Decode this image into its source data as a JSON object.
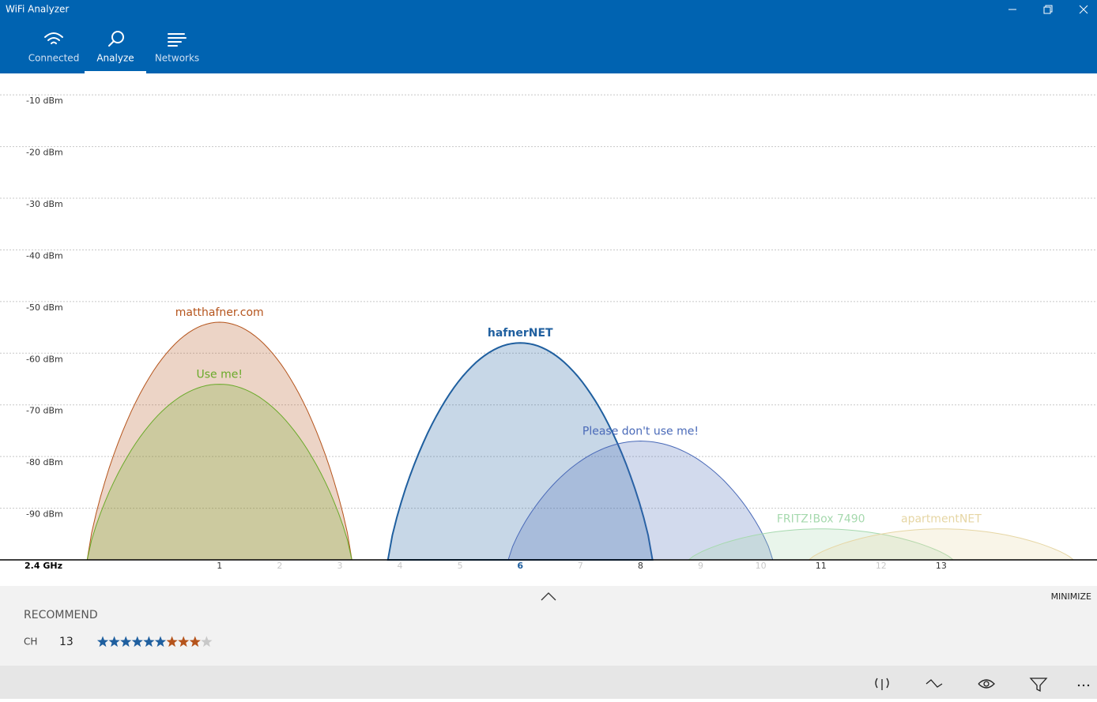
{
  "app": {
    "title": "WiFi Analyzer",
    "tabs": [
      {
        "label": "Connected"
      },
      {
        "label": "Analyze",
        "selected": true
      },
      {
        "label": "Networks"
      }
    ]
  },
  "chart_data": {
    "type": "wifi-spectrum",
    "x_label": "2.4 GHz",
    "xlim": [
      -2.65,
      15.59
    ],
    "xticks": [
      1,
      2,
      3,
      4,
      5,
      6,
      7,
      8,
      9,
      10,
      11,
      12,
      13
    ],
    "ylim": [
      -100,
      -6
    ],
    "yticks": [
      {
        "value": -10,
        "label": "-10 dBm"
      },
      {
        "value": -20,
        "label": "-20 dBm"
      },
      {
        "value": -30,
        "label": "-30 dBm"
      },
      {
        "value": -40,
        "label": "-40 dBm"
      },
      {
        "value": -50,
        "label": "-50 dBm"
      },
      {
        "value": -60,
        "label": "-60 dBm"
      },
      {
        "value": -70,
        "label": "-70 dBm"
      },
      {
        "value": -80,
        "label": "-80 dBm"
      },
      {
        "value": -90,
        "label": "-90 dBm"
      }
    ],
    "grid": true,
    "networks": [
      {
        "ssid": "matthafner.com",
        "channel": 1,
        "signal": -54,
        "color": "#b5541c"
      },
      {
        "ssid": "Use me!",
        "channel": 1,
        "signal": -66,
        "color": "#6aaa2a"
      },
      {
        "ssid": "hafnerNET",
        "channel": 6,
        "signal": -58,
        "color": "#1f5f9f",
        "connected": true
      },
      {
        "ssid": "Please don't use me!",
        "channel": 8,
        "signal": -77,
        "color": "#4a6ab8"
      },
      {
        "ssid": "FRITZ!Box 7490",
        "channel": 11,
        "signal": -94,
        "color": "#a6d9ae"
      },
      {
        "ssid": "apartmentNET",
        "channel": 13,
        "signal": -94,
        "color": "#e6d6a4"
      }
    ]
  },
  "panel": {
    "minimize": "MINIMIZE",
    "recommend": "RECOMMEND",
    "channel_label": "CH",
    "channel": 13,
    "rating": 9,
    "rating_max": 10
  }
}
